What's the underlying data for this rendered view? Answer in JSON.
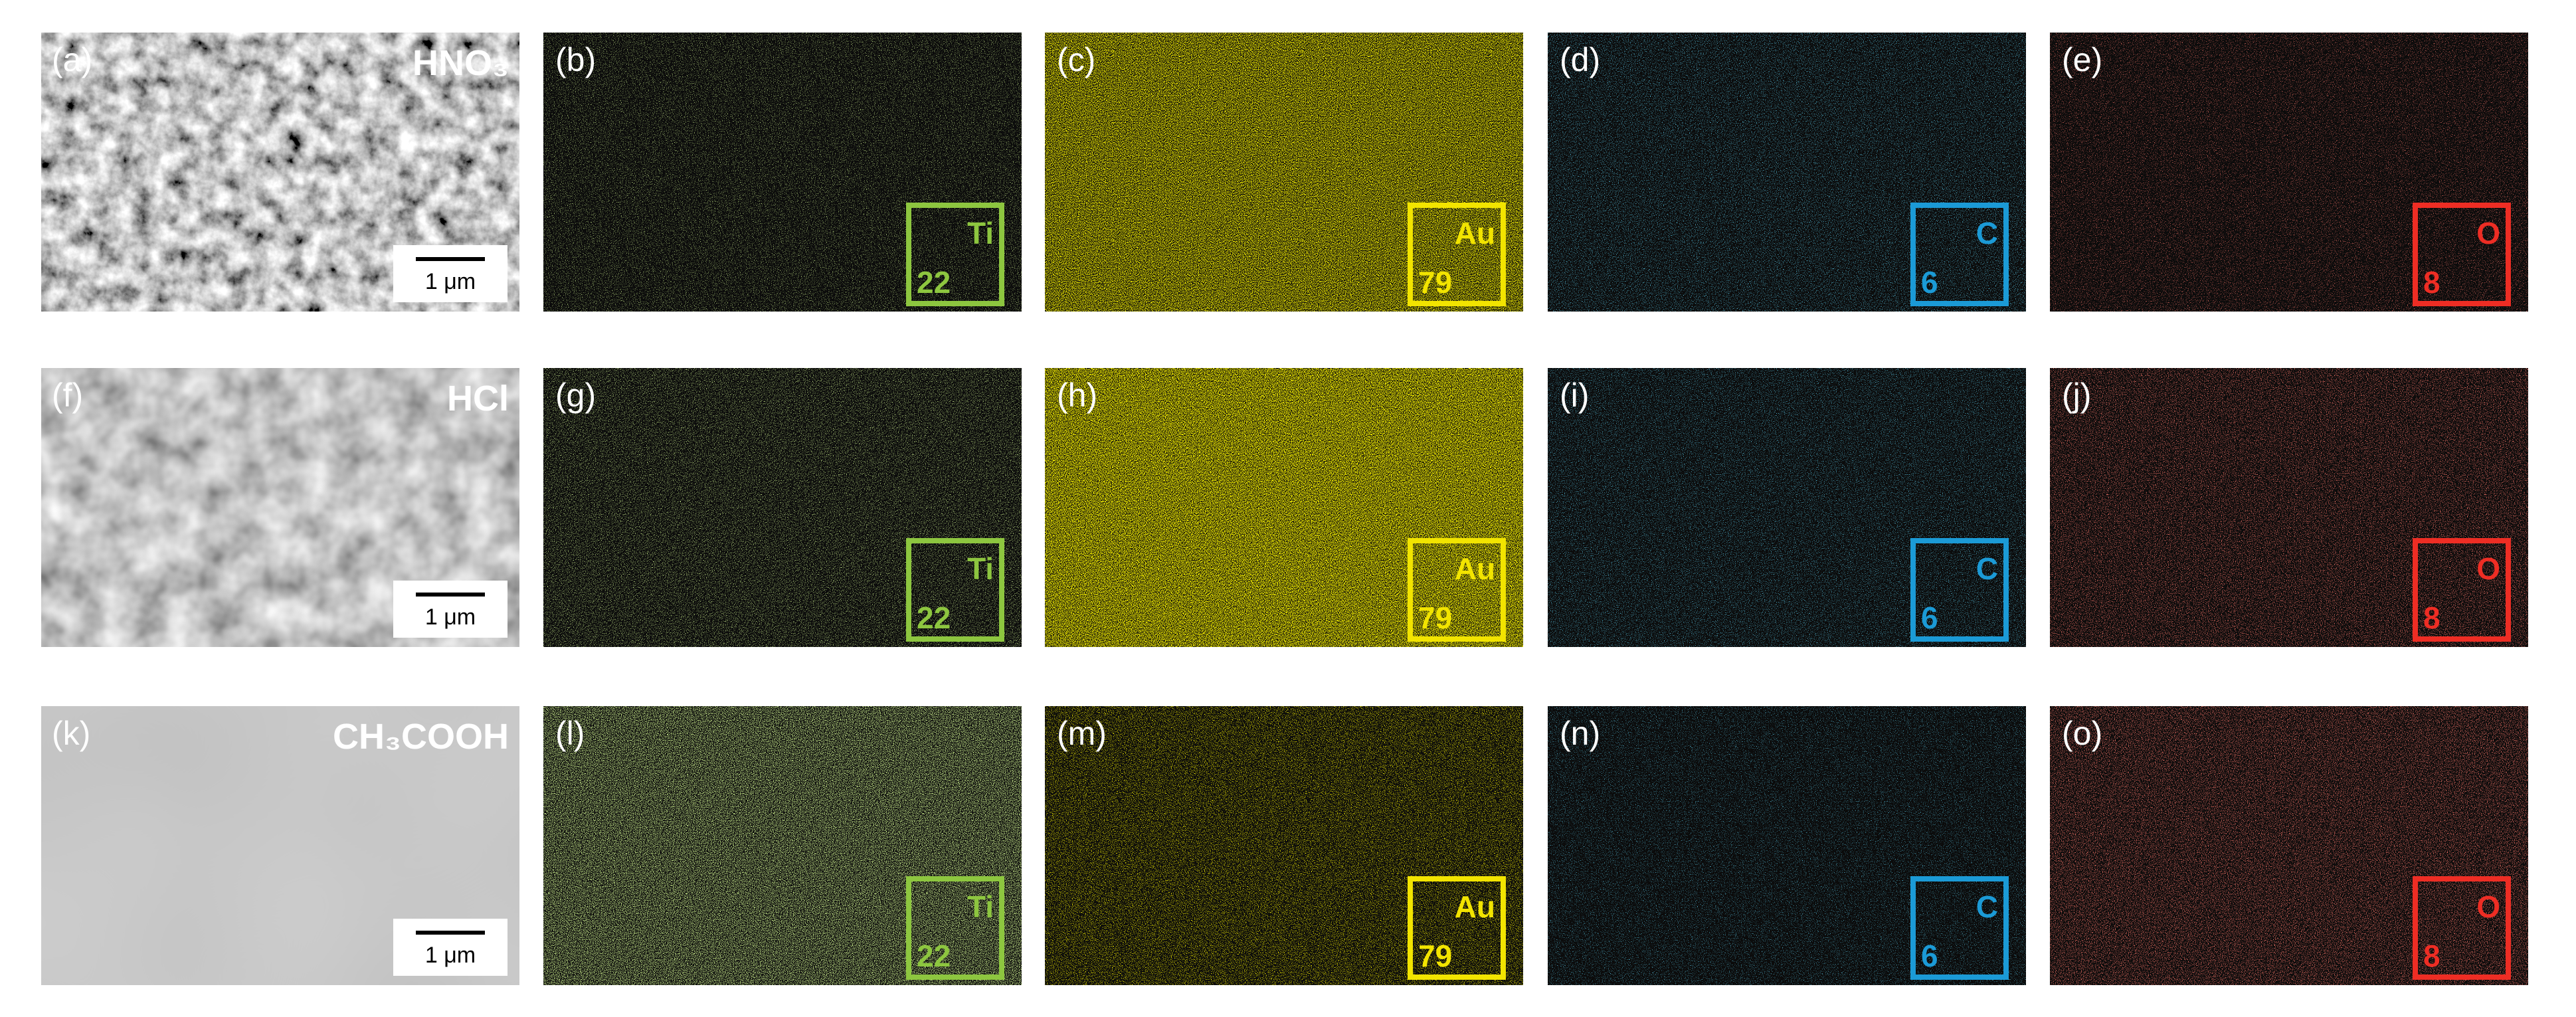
{
  "rows": [
    {
      "sem": {
        "label": "(a)",
        "title": "HNO₃",
        "scale_bar": "1 μm"
      },
      "maps": [
        {
          "label": "(b)",
          "element": "Ti",
          "number": 22,
          "color": "#8dc63f"
        },
        {
          "label": "(c)",
          "element": "Au",
          "number": 79,
          "color": "#f2e400"
        },
        {
          "label": "(d)",
          "element": "C",
          "number": 6,
          "color": "#1b9ad6"
        },
        {
          "label": "(e)",
          "element": "O",
          "number": 8,
          "color": "#ee2d24"
        }
      ]
    },
    {
      "sem": {
        "label": "(f)",
        "title": "HCl",
        "scale_bar": "1 μm"
      },
      "maps": [
        {
          "label": "(g)",
          "element": "Ti",
          "number": 22,
          "color": "#8dc63f"
        },
        {
          "label": "(h)",
          "element": "Au",
          "number": 79,
          "color": "#f2e400"
        },
        {
          "label": "(i)",
          "element": "C",
          "number": 6,
          "color": "#1b9ad6"
        },
        {
          "label": "(j)",
          "element": "O",
          "number": 8,
          "color": "#ee2d24"
        }
      ]
    },
    {
      "sem": {
        "label": "(k)",
        "title": "CH₃COOH",
        "scale_bar": "1 μm"
      },
      "maps": [
        {
          "label": "(l)",
          "element": "Ti",
          "number": 22,
          "color": "#8dc63f"
        },
        {
          "label": "(m)",
          "element": "Au",
          "number": 79,
          "color": "#f2e400"
        },
        {
          "label": "(n)",
          "element": "C",
          "number": 6,
          "color": "#1b9ad6"
        },
        {
          "label": "(o)",
          "element": "O",
          "number": 8,
          "color": "#ee2d24"
        }
      ]
    }
  ]
}
